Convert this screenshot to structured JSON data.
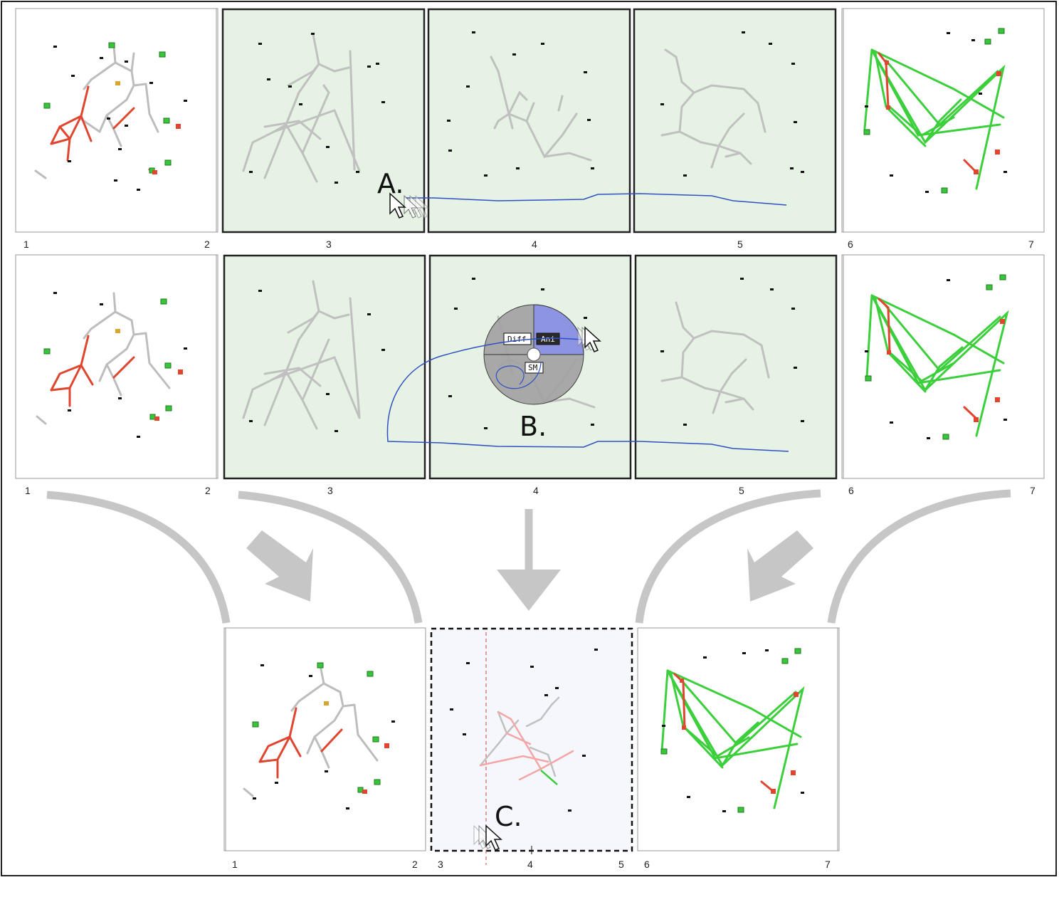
{
  "figure": {
    "rows": [
      {
        "numbers": [
          "1",
          "2",
          "3",
          "4",
          "5",
          "6",
          "7"
        ]
      },
      {
        "numbers": [
          "1",
          "2",
          "3",
          "4",
          "5",
          "6",
          "7"
        ]
      }
    ],
    "bottom_numbers": [
      "1",
      "2",
      "3",
      "4",
      "5",
      "6",
      "7"
    ],
    "annotations": {
      "a": "A.",
      "b": "B.",
      "c": "C."
    },
    "pie_menu": {
      "left": "Diff",
      "right": "Ani",
      "bottom": "SM"
    }
  },
  "colors": {
    "frame": "#222222",
    "panel_active": "#e6f2e4",
    "panel_diff": "#f5f7fc",
    "edge_gray": "#bdbdbd",
    "edge_red": "#e0452f",
    "edge_green": "#3ccf3c",
    "node_green": "#39c539",
    "path_blue": "#2f4fc4",
    "pie_gray": "#9a9a9a",
    "pie_blue": "#8c95e6",
    "arrow_gray": "#c6c6c6"
  }
}
